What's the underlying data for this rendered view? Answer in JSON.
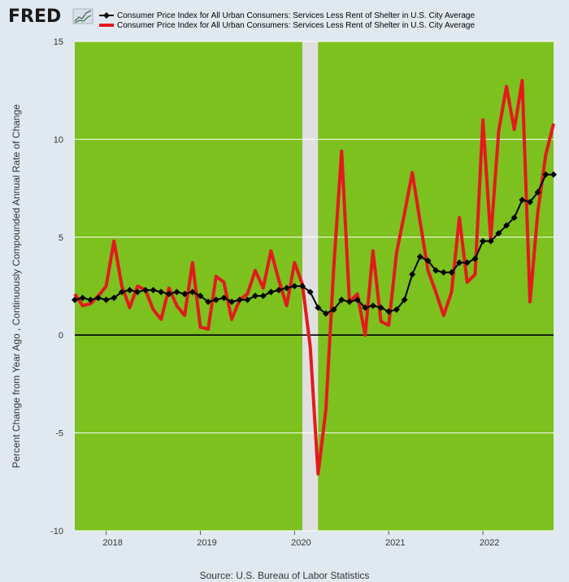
{
  "logo": {
    "text": "FRED",
    "icon": "trend-line-icon"
  },
  "source": "Source: U.S. Bureau of Labor Statistics",
  "chart_data": {
    "type": "line",
    "title": "",
    "ylabel": "Percent Change from Year Ago , Continuously Compounded Annual Rate of Change",
    "xlabel": "",
    "ylim": [
      -10,
      15
    ],
    "yticks": [
      -10,
      -5,
      0,
      5,
      10,
      15
    ],
    "xticks": [
      {
        "label": "2018",
        "x": 2018.0
      },
      {
        "label": "2019",
        "x": 2019.0
      },
      {
        "label": "2020",
        "x": 2020.0
      },
      {
        "label": "2021",
        "x": 2021.0
      },
      {
        "label": "2022",
        "x": 2022.0
      }
    ],
    "xlim": [
      2017.667,
      2022.75
    ],
    "grid": true,
    "legend_position": "top",
    "recession_band": [
      2020.083,
      2020.25
    ],
    "colors": {
      "plot_bg": "#7cc11e",
      "recession": "#e0e0e0",
      "series_black": "#000000",
      "series_red": "#e31a1c",
      "grid": "#ffffff"
    },
    "series": [
      {
        "name": "Consumer Price Index for All Urban Consumers: Services Less Rent of Shelter in U.S. City Average",
        "color": "#000000",
        "marker": "diamond",
        "x": [
          2017.667,
          2017.75,
          2017.833,
          2017.917,
          2018.0,
          2018.083,
          2018.167,
          2018.25,
          2018.333,
          2018.417,
          2018.5,
          2018.583,
          2018.667,
          2018.75,
          2018.833,
          2018.917,
          2019.0,
          2019.083,
          2019.167,
          2019.25,
          2019.333,
          2019.417,
          2019.5,
          2019.583,
          2019.667,
          2019.75,
          2019.833,
          2019.917,
          2020.0,
          2020.083,
          2020.167,
          2020.25,
          2020.333,
          2020.417,
          2020.5,
          2020.583,
          2020.667,
          2020.75,
          2020.833,
          2020.917,
          2021.0,
          2021.083,
          2021.167,
          2021.25,
          2021.333,
          2021.417,
          2021.5,
          2021.583,
          2021.667,
          2021.75,
          2021.833,
          2021.917,
          2022.0,
          2022.083,
          2022.167,
          2022.25,
          2022.333,
          2022.417,
          2022.5,
          2022.583,
          2022.667,
          2022.75
        ],
        "values": [
          1.8,
          1.9,
          1.8,
          1.9,
          1.8,
          1.9,
          2.2,
          2.3,
          2.2,
          2.3,
          2.3,
          2.2,
          2.1,
          2.2,
          2.1,
          2.2,
          2.0,
          1.7,
          1.8,
          1.9,
          1.7,
          1.8,
          1.8,
          2.0,
          2.0,
          2.2,
          2.3,
          2.4,
          2.5,
          2.5,
          2.2,
          1.4,
          1.1,
          1.3,
          1.8,
          1.7,
          1.8,
          1.4,
          1.5,
          1.4,
          1.2,
          1.3,
          1.8,
          3.1,
          4.0,
          3.8,
          3.3,
          3.2,
          3.2,
          3.7,
          3.7,
          3.9,
          4.8,
          4.8,
          5.2,
          5.6,
          6.0,
          6.9,
          6.8,
          7.3,
          8.2,
          8.2
        ]
      },
      {
        "name": "Consumer Price Index for All Urban Consumers: Services Less Rent of Shelter in U.S. City Average",
        "color": "#e31a1c",
        "marker": "none",
        "x": [
          2017.667,
          2017.75,
          2017.833,
          2017.917,
          2018.0,
          2018.083,
          2018.167,
          2018.25,
          2018.333,
          2018.417,
          2018.5,
          2018.583,
          2018.667,
          2018.75,
          2018.833,
          2018.917,
          2019.0,
          2019.083,
          2019.167,
          2019.25,
          2019.333,
          2019.417,
          2019.5,
          2019.583,
          2019.667,
          2019.75,
          2019.833,
          2019.917,
          2020.0,
          2020.083,
          2020.167,
          2020.25,
          2020.333,
          2020.417,
          2020.5,
          2020.583,
          2020.667,
          2020.75,
          2020.833,
          2020.917,
          2021.0,
          2021.083,
          2021.167,
          2021.25,
          2021.333,
          2021.417,
          2021.5,
          2021.583,
          2021.667,
          2021.75,
          2021.833,
          2021.917,
          2022.0,
          2022.083,
          2022.167,
          2022.25,
          2022.333,
          2022.417,
          2022.5,
          2022.583,
          2022.667,
          2022.75
        ],
        "values": [
          2.1,
          1.5,
          1.6,
          2.0,
          2.5,
          4.8,
          2.5,
          1.4,
          2.5,
          2.3,
          1.3,
          0.8,
          2.4,
          1.5,
          1.0,
          3.7,
          0.4,
          0.3,
          3.0,
          2.7,
          0.8,
          1.8,
          2.1,
          3.3,
          2.4,
          4.3,
          2.8,
          1.5,
          3.7,
          2.6,
          -0.6,
          -7.1,
          -3.8,
          3.5,
          9.4,
          1.7,
          2.1,
          0.0,
          4.3,
          0.7,
          0.5,
          4.2,
          6.2,
          8.3,
          5.8,
          3.3,
          2.2,
          1.0,
          2.2,
          6.0,
          2.7,
          3.1,
          11.0,
          4.9,
          10.4,
          12.7,
          10.5,
          13.0,
          1.7,
          6.3,
          9.2,
          10.8
        ]
      }
    ]
  }
}
